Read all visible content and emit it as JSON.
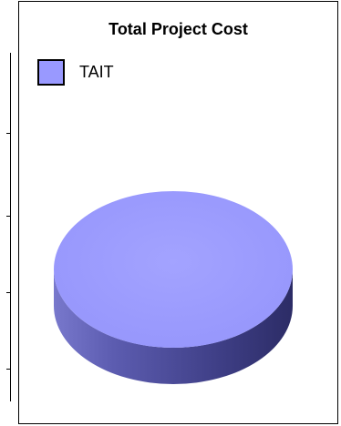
{
  "chart_data": {
    "type": "pie",
    "title": "Total Project Cost",
    "series": [
      {
        "name": "TAIT",
        "slices": [
          {
            "label": "TAIT",
            "value": 100,
            "color": "#9999ff"
          }
        ]
      }
    ],
    "legend": {
      "position": "top-left",
      "entries": [
        {
          "label": "TAIT",
          "color": "#9999ff"
        }
      ]
    },
    "style": "3d",
    "edge_color": "#5a5ab4"
  }
}
